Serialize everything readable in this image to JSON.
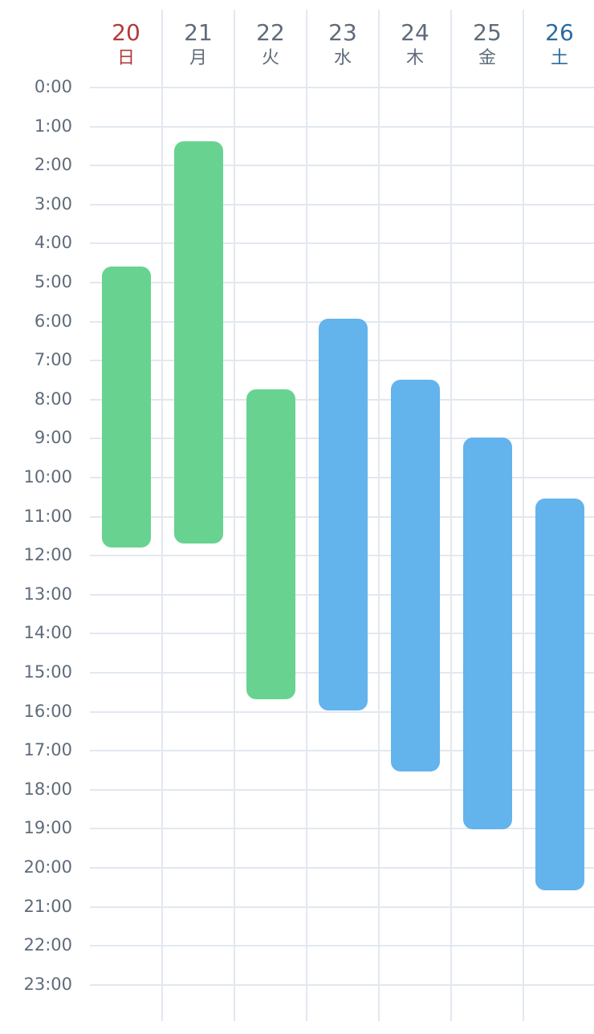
{
  "calendar": {
    "days": [
      {
        "num": "20",
        "name": "日",
        "color": "#b23a3a"
      },
      {
        "num": "21",
        "name": "月",
        "color": "#5f6b7a"
      },
      {
        "num": "22",
        "name": "火",
        "color": "#5f6b7a"
      },
      {
        "num": "23",
        "name": "水",
        "color": "#5f6b7a"
      },
      {
        "num": "24",
        "name": "木",
        "color": "#5f6b7a"
      },
      {
        "num": "25",
        "name": "金",
        "color": "#5f6b7a"
      },
      {
        "num": "26",
        "name": "土",
        "color": "#2c6aa0"
      }
    ],
    "hours": [
      "0:00",
      "1:00",
      "2:00",
      "3:00",
      "4:00",
      "5:00",
      "6:00",
      "7:00",
      "8:00",
      "9:00",
      "10:00",
      "11:00",
      "12:00",
      "13:00",
      "14:00",
      "15:00",
      "16:00",
      "17:00",
      "18:00",
      "19:00",
      "20:00",
      "21:00",
      "22:00",
      "23:00"
    ],
    "events": [
      {
        "day": 0,
        "start": 4.6,
        "end": 11.8,
        "color": "#68d391"
      },
      {
        "day": 1,
        "start": 1.4,
        "end": 11.7,
        "color": "#68d391"
      },
      {
        "day": 2,
        "start": 7.75,
        "end": 15.7,
        "color": "#68d391"
      },
      {
        "day": 3,
        "start": 5.95,
        "end": 16.0,
        "color": "#63b3ed"
      },
      {
        "day": 4,
        "start": 7.5,
        "end": 17.55,
        "color": "#63b3ed"
      },
      {
        "day": 5,
        "start": 9.0,
        "end": 19.05,
        "color": "#63b3ed"
      },
      {
        "day": 6,
        "start": 10.55,
        "end": 20.6,
        "color": "#63b3ed"
      }
    ],
    "grid_color": "#e2e8f0",
    "label_color": "#5f6b7a"
  }
}
